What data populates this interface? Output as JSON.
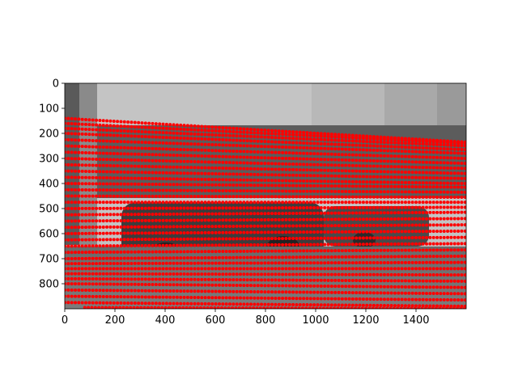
{
  "chart_data": {
    "type": "scatter",
    "title": "",
    "xlabel": "",
    "ylabel": "",
    "xlim": [
      0,
      1600
    ],
    "ylim": [
      900,
      0
    ],
    "y_inverted": true,
    "grid": false,
    "legend": "none",
    "xticks": [
      0,
      200,
      400,
      600,
      800,
      1000,
      1200,
      1400
    ],
    "xtick_labels": [
      "0",
      "200",
      "400",
      "600",
      "800",
      "1000",
      "1200",
      "1400"
    ],
    "yticks": [
      0,
      100,
      200,
      300,
      400,
      500,
      600,
      700,
      800
    ],
    "ytick_labels": [
      "0",
      "100",
      "200",
      "300",
      "400",
      "500",
      "600",
      "700",
      "800"
    ],
    "background_image": "grayscale street photo: office building facade with windows, two parked cars, asphalt road",
    "point_color": "#ff0000",
    "series": [
      {
        "scan_lines": [
          {
            "y_left": 140,
            "y_right": 235,
            "x_start": 0,
            "x_end": 1600
          },
          {
            "y_left": 160,
            "y_right": 240,
            "x_start": 0,
            "x_end": 1600
          },
          {
            "y_left": 180,
            "y_right": 250,
            "x_start": 0,
            "x_end": 1600
          },
          {
            "y_left": 200,
            "y_right": 265,
            "x_start": 0,
            "x_end": 1600
          },
          {
            "y_left": 225,
            "y_right": 280,
            "x_start": 0,
            "x_end": 1600
          },
          {
            "y_left": 250,
            "y_right": 300,
            "x_start": 0,
            "x_end": 1600
          },
          {
            "y_left": 275,
            "y_right": 320,
            "x_start": 0,
            "x_end": 1600
          },
          {
            "y_left": 300,
            "y_right": 340,
            "x_start": 0,
            "x_end": 1600
          },
          {
            "y_left": 325,
            "y_right": 360,
            "x_start": 0,
            "x_end": 1600
          },
          {
            "y_left": 350,
            "y_right": 380,
            "x_start": 0,
            "x_end": 1600
          },
          {
            "y_left": 375,
            "y_right": 400,
            "x_start": 0,
            "x_end": 1600
          },
          {
            "y_left": 400,
            "y_right": 415,
            "x_start": 0,
            "x_end": 1600
          },
          {
            "y_left": 425,
            "y_right": 435,
            "x_start": 0,
            "x_end": 1600
          },
          {
            "y_left": 450,
            "y_right": 455,
            "x_start": 0,
            "x_end": 1600
          },
          {
            "y_left": 475,
            "y_right": 475,
            "x_start": 0,
            "x_end": 1600
          },
          {
            "y_left": 500,
            "y_right": 495,
            "x_start": 0,
            "x_end": 1600
          },
          {
            "y_left": 525,
            "y_right": 515,
            "x_start": 0,
            "x_end": 1600
          },
          {
            "y_left": 550,
            "y_right": 540,
            "x_start": 0,
            "x_end": 1600
          },
          {
            "y_left": 575,
            "y_right": 565,
            "x_start": 0,
            "x_end": 1600
          },
          {
            "y_left": 600,
            "y_right": 590,
            "x_start": 0,
            "x_end": 1600
          },
          {
            "y_left": 625,
            "y_right": 615,
            "x_start": 0,
            "x_end": 1600
          },
          {
            "y_left": 650,
            "y_right": 640,
            "x_start": 0,
            "x_end": 1600
          },
          {
            "y_left": 675,
            "y_right": 665,
            "x_start": 0,
            "x_end": 1600
          },
          {
            "y_left": 700,
            "y_right": 690,
            "x_start": 0,
            "x_end": 1600
          },
          {
            "y_left": 720,
            "y_right": 715,
            "x_start": 0,
            "x_end": 1600
          },
          {
            "y_left": 740,
            "y_right": 740,
            "x_start": 0,
            "x_end": 1600
          },
          {
            "y_left": 760,
            "y_right": 765,
            "x_start": 0,
            "x_end": 1600
          },
          {
            "y_left": 780,
            "y_right": 790,
            "x_start": 0,
            "x_end": 1600
          },
          {
            "y_left": 800,
            "y_right": 815,
            "x_start": 0,
            "x_end": 1600
          },
          {
            "y_left": 825,
            "y_right": 840,
            "x_start": 0,
            "x_end": 1600
          },
          {
            "y_left": 850,
            "y_right": 865,
            "x_start": 0,
            "x_end": 1600
          },
          {
            "y_left": 875,
            "y_right": 890,
            "x_start": 0,
            "x_end": 1600
          },
          {
            "y_left": 895,
            "y_right": 900,
            "x_start": 80,
            "x_end": 1600
          }
        ]
      }
    ]
  }
}
